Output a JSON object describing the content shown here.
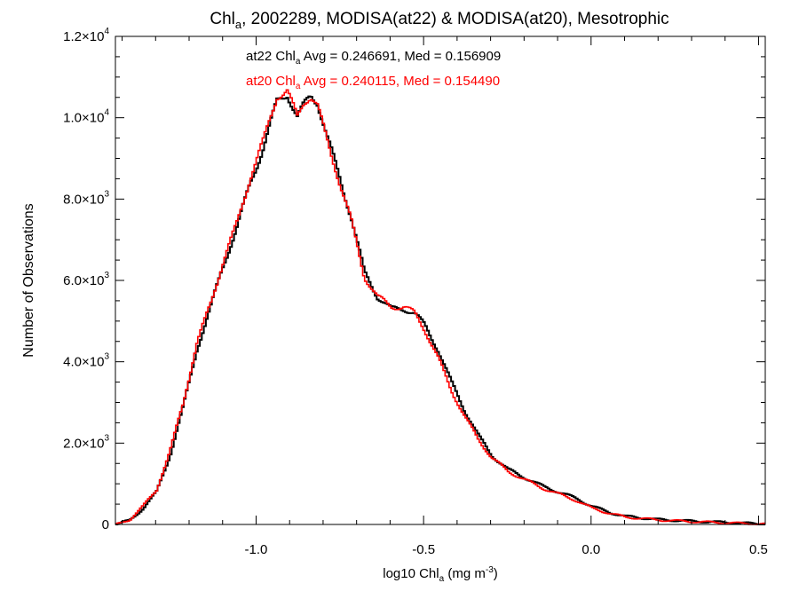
{
  "chart_data": {
    "type": "line",
    "title": {
      "prefix": "Chl",
      "sub": "a",
      "suffix": ", 2002289, MODISA(at22) & MODISA(at20), Mesotrophic"
    },
    "xlabel": {
      "prefix": "log10 Chl",
      "sub": "a",
      "mid": " (mg m",
      "sup": "-3",
      "end": ")"
    },
    "ylabel": "Number of Observations",
    "xlim": [
      -1.42,
      0.52
    ],
    "ylim": [
      0,
      12000
    ],
    "x_ticks": [
      {
        "value": -1.0,
        "label": "-1.0"
      },
      {
        "value": -0.5,
        "label": "-0.5"
      },
      {
        "value": 0.0,
        "label": "0.0"
      },
      {
        "value": 0.5,
        "label": "0.5"
      }
    ],
    "y_ticks": [
      {
        "value": 0,
        "label": "0",
        "exp": ""
      },
      {
        "value": 2000,
        "label": "2.0×10",
        "exp": "3"
      },
      {
        "value": 4000,
        "label": "4.0×10",
        "exp": "3"
      },
      {
        "value": 6000,
        "label": "6.0×10",
        "exp": "3"
      },
      {
        "value": 8000,
        "label": "8.0×10",
        "exp": "3"
      },
      {
        "value": 10000,
        "label": "1.0×10",
        "exp": "4"
      },
      {
        "value": 12000,
        "label": "1.2×10",
        "exp": "4"
      }
    ],
    "grid": false,
    "annotations": [
      {
        "series": "at22",
        "color": "#000000",
        "prefix": "at22 Chl",
        "sub": "a",
        "text": " Avg = 0.246691, Med = 0.156909"
      },
      {
        "series": "at20",
        "color": "#ff0000",
        "prefix": "at20 Chl",
        "sub": "a",
        "text": " Avg = 0.240115, Med = 0.154490"
      }
    ],
    "series": [
      {
        "key": "at22",
        "color": "#000000",
        "x": [
          -1.42,
          -1.38,
          -1.34,
          -1.3,
          -1.26,
          -1.22,
          -1.18,
          -1.14,
          -1.1,
          -1.06,
          -1.02,
          -0.98,
          -0.94,
          -0.91,
          -0.88,
          -0.86,
          -0.84,
          -0.82,
          -0.79,
          -0.76,
          -0.72,
          -0.68,
          -0.64,
          -0.6,
          -0.56,
          -0.53,
          -0.5,
          -0.46,
          -0.42,
          -0.38,
          -0.34,
          -0.3,
          -0.25,
          -0.2,
          -0.15,
          -0.1,
          -0.05,
          0.0,
          0.05,
          0.1,
          0.2,
          0.3,
          0.4,
          0.52
        ],
        "y": [
          0,
          100,
          400,
          800,
          1700,
          2900,
          4300,
          5300,
          6400,
          7300,
          8400,
          9300,
          10400,
          10600,
          10000,
          10300,
          10550,
          10400,
          9500,
          8700,
          7600,
          6200,
          5600,
          5300,
          5300,
          5200,
          4900,
          4300,
          3500,
          2800,
          2200,
          1700,
          1350,
          1150,
          950,
          800,
          650,
          450,
          300,
          200,
          120,
          80,
          50,
          10
        ]
      },
      {
        "key": "at20",
        "color": "#ff0000",
        "x": [
          -1.42,
          -1.38,
          -1.34,
          -1.3,
          -1.26,
          -1.22,
          -1.18,
          -1.14,
          -1.1,
          -1.06,
          -1.02,
          -0.98,
          -0.94,
          -0.91,
          -0.88,
          -0.86,
          -0.84,
          -0.82,
          -0.79,
          -0.76,
          -0.72,
          -0.68,
          -0.64,
          -0.6,
          -0.56,
          -0.53,
          -0.5,
          -0.46,
          -0.42,
          -0.38,
          -0.34,
          -0.3,
          -0.25,
          -0.2,
          -0.15,
          -0.1,
          -0.05,
          0.0,
          0.05,
          0.1,
          0.2,
          0.3,
          0.4,
          0.52
        ],
        "y": [
          0,
          120,
          450,
          850,
          1800,
          3000,
          4450,
          5400,
          6500,
          7400,
          8550,
          9450,
          10550,
          10650,
          10000,
          10400,
          10550,
          10300,
          9400,
          8600,
          7500,
          6100,
          5600,
          5350,
          5350,
          5200,
          4800,
          4100,
          3300,
          2650,
          2100,
          1650,
          1300,
          1100,
          900,
          750,
          600,
          400,
          280,
          180,
          110,
          70,
          40,
          10
        ]
      }
    ]
  }
}
